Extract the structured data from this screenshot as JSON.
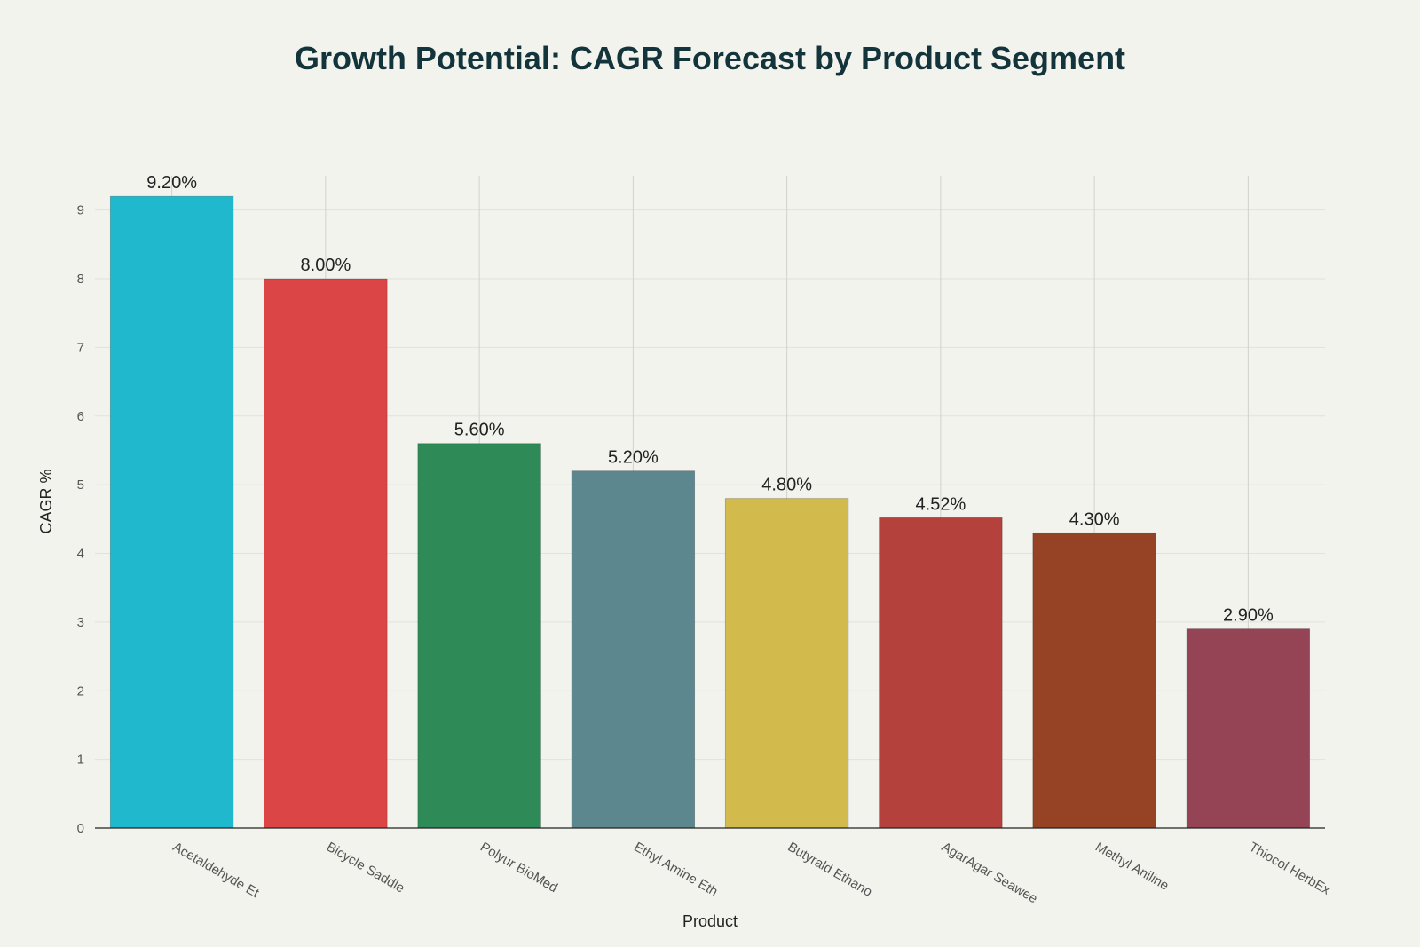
{
  "chart_data": {
    "type": "bar",
    "title": "Growth Potential: CAGR Forecast by Product Segment",
    "xlabel": "Product",
    "ylabel": "CAGR %",
    "ylim": [
      0,
      9.5
    ],
    "yticks": [
      0,
      1,
      2,
      3,
      4,
      5,
      6,
      7,
      8,
      9
    ],
    "grid": true,
    "categories": [
      "Acetaldehyde Et",
      "Bicycle Saddle",
      "Polyur BioMed",
      "Ethyl Amine Eth",
      "Butyrald Ethano",
      "AgarAgar Seawee",
      "Methyl Aniline",
      "Thiocol HerbEx"
    ],
    "values": [
      9.2,
      8.0,
      5.6,
      5.2,
      4.8,
      4.52,
      4.3,
      2.9
    ],
    "data_labels": [
      "9.20%",
      "8.00%",
      "5.60%",
      "5.20%",
      "4.80%",
      "4.52%",
      "4.30%",
      "2.90%"
    ],
    "colors": [
      "#1fb8cd",
      "#db4545",
      "#2e8b57",
      "#5d878f",
      "#d2ba4c",
      "#b4413c",
      "#964325",
      "#944454"
    ]
  }
}
